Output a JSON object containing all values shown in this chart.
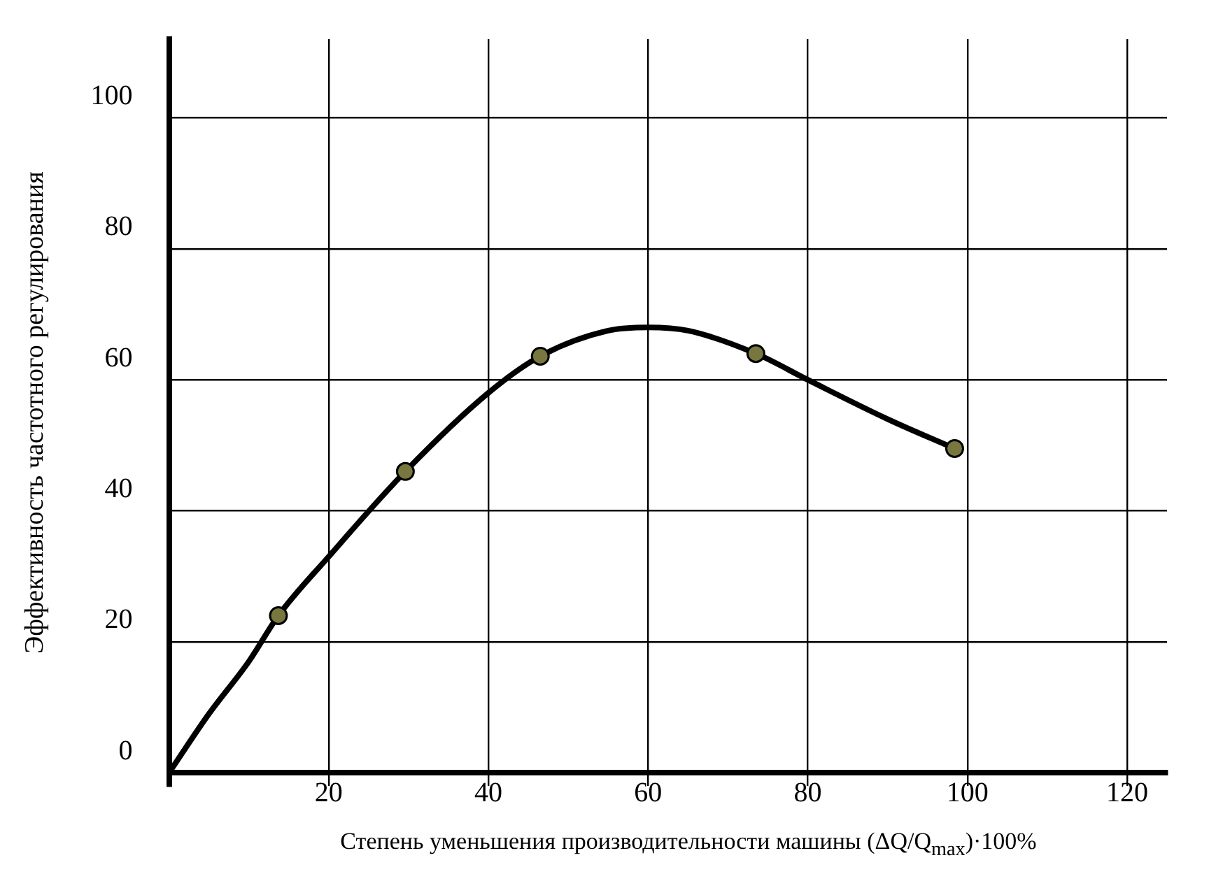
{
  "chart_data": {
    "type": "line",
    "xlabel": "Степень уменьшения производительности машины (ΔQ/Q$_{max}$)·100%",
    "ylabel": "Эффективность частотного регулирования",
    "xlim": [
      0,
      125
    ],
    "ylim": [
      -2,
      112
    ],
    "xticks": [
      20,
      40,
      60,
      80,
      100,
      120
    ],
    "yticks": [
      0,
      20,
      40,
      60,
      80,
      100
    ],
    "grid": true,
    "legend": false,
    "series": [
      {
        "color": "#000000",
        "marker": "none",
        "line_style": "solid",
        "x": [
          0,
          5,
          10,
          13.7,
          20,
          29.6,
          40,
          46.5,
          55,
          60,
          65,
          73.5,
          80,
          90,
          98.4
        ],
        "values": [
          0,
          9,
          17,
          24,
          33,
          46,
          58,
          63.6,
          67.5,
          68,
          67.5,
          64,
          60,
          54,
          49.5
        ]
      },
      {
        "type": "scatter",
        "color": "#77773f",
        "marker": "circle",
        "x": [
          13.7,
          29.6,
          46.5,
          73.5,
          98.4
        ],
        "values": [
          24,
          46,
          63.6,
          64,
          49.5
        ]
      }
    ]
  }
}
